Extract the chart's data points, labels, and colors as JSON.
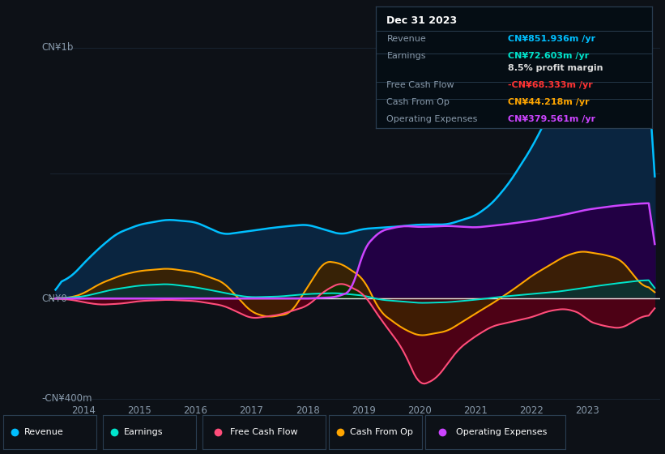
{
  "bg_color": "#0d1117",
  "plot_bg_color": "#0d1b2a",
  "ylabel_top": "CN¥1b",
  "ylabel_zero": "CN¥0",
  "ylabel_neg": "-CN¥400m",
  "xlim_data": [
    2013.4,
    2024.3
  ],
  "ylim_data": [
    -430,
    1100
  ],
  "xtick_years": [
    2014,
    2015,
    2016,
    2017,
    2018,
    2019,
    2020,
    2021,
    2022,
    2023
  ],
  "info_box": {
    "title": "Dec 31 2023",
    "rows": [
      {
        "label": "Revenue",
        "value": "CN¥851.936m /yr",
        "value_color": "#00bfff"
      },
      {
        "label": "Earnings",
        "value": "CN¥72.603m /yr",
        "value_color": "#00e5cc"
      },
      {
        "label": "",
        "value": "8.5% profit margin",
        "value_color": "#dddddd"
      },
      {
        "label": "Free Cash Flow",
        "value": "-CN¥68.333m /yr",
        "value_color": "#ff3333"
      },
      {
        "label": "Cash From Op",
        "value": "CN¥44.218m /yr",
        "value_color": "#ffa500"
      },
      {
        "label": "Operating Expenses",
        "value": "CN¥379.561m /yr",
        "value_color": "#cc44ff"
      }
    ]
  },
  "legend": [
    {
      "label": "Revenue",
      "color": "#00bfff"
    },
    {
      "label": "Earnings",
      "color": "#00e5cc"
    },
    {
      "label": "Free Cash Flow",
      "color": "#ff4d7a"
    },
    {
      "label": "Cash From Op",
      "color": "#ffa500"
    },
    {
      "label": "Operating Expenses",
      "color": "#cc44ff"
    }
  ],
  "revenue_color": "#00bfff",
  "earnings_color": "#00e5cc",
  "fcf_color": "#ff4d7a",
  "cashfromop_color": "#ffa500",
  "opex_color": "#cc44ff",
  "revenue_fill": "#0a2540",
  "earnings_fill": "#0a3333",
  "fcf_fill": "#550015",
  "cashfromop_fill": "#3d2200",
  "opex_fill": "#220044",
  "grid_color": "#1e2d3d"
}
